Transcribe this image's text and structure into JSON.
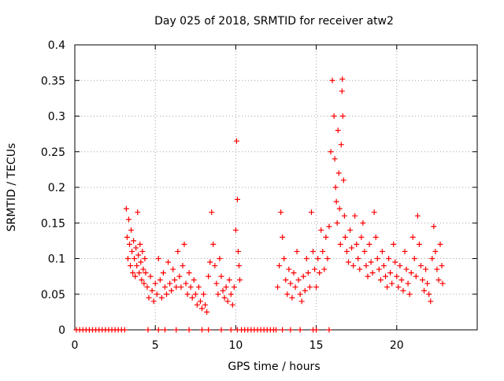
{
  "chart_data": {
    "type": "scatter",
    "title": "Day 025 of 2018, SRMTID for receiver atw2",
    "xlabel": "GPS time / hours",
    "ylabel": "SRMTID / TECUs",
    "xlim": [
      0,
      25
    ],
    "ylim": [
      0,
      0.4
    ],
    "xticks": [
      {
        "value": 0,
        "label": "0"
      },
      {
        "value": 5,
        "label": "5"
      },
      {
        "value": 10,
        "label": "10"
      },
      {
        "value": 15,
        "label": "15"
      },
      {
        "value": 20,
        "label": "20"
      }
    ],
    "yticks": [
      {
        "value": 0,
        "label": "0"
      },
      {
        "value": 0.05,
        "label": "0.05"
      },
      {
        "value": 0.1,
        "label": "0.1"
      },
      {
        "value": 0.15,
        "label": "0.15"
      },
      {
        "value": 0.2,
        "label": "0.2"
      },
      {
        "value": 0.25,
        "label": "0.25"
      },
      {
        "value": 0.3,
        "label": "0.3"
      },
      {
        "value": 0.35,
        "label": "0.35"
      },
      {
        "value": 0.4,
        "label": "0.4"
      }
    ],
    "grid": true,
    "marker": "+",
    "series_color": "#ff0000",
    "series": [
      {
        "name": "SRMTID",
        "points": [
          [
            0.1,
            0
          ],
          [
            0.3,
            0
          ],
          [
            0.5,
            0
          ],
          [
            0.7,
            0
          ],
          [
            0.9,
            0
          ],
          [
            1.1,
            0
          ],
          [
            1.3,
            0
          ],
          [
            1.5,
            0
          ],
          [
            1.7,
            0
          ],
          [
            1.9,
            0
          ],
          [
            2.1,
            0
          ],
          [
            2.3,
            0
          ],
          [
            2.5,
            0
          ],
          [
            2.7,
            0
          ],
          [
            2.9,
            0
          ],
          [
            3.1,
            0
          ],
          [
            3.2,
            0.17
          ],
          [
            3.25,
            0.13
          ],
          [
            3.3,
            0.1
          ],
          [
            3.35,
            0.155
          ],
          [
            3.4,
            0.12
          ],
          [
            3.45,
            0.09
          ],
          [
            3.5,
            0.14
          ],
          [
            3.55,
            0.11
          ],
          [
            3.6,
            0.08
          ],
          [
            3.65,
            0.125
          ],
          [
            3.7,
            0.1
          ],
          [
            3.75,
            0.075
          ],
          [
            3.8,
            0.115
          ],
          [
            3.85,
            0.09
          ],
          [
            3.9,
            0.165
          ],
          [
            3.95,
            0.105
          ],
          [
            4.0,
            0.08
          ],
          [
            4.05,
            0.12
          ],
          [
            4.1,
            0.095
          ],
          [
            4.15,
            0.07
          ],
          [
            4.2,
            0.11
          ],
          [
            4.25,
            0.085
          ],
          [
            4.3,
            0.065
          ],
          [
            4.35,
            0.1
          ],
          [
            4.4,
            0.08
          ],
          [
            4.5,
            0.06
          ],
          [
            4.6,
            0.045
          ],
          [
            4.7,
            0.075
          ],
          [
            4.8,
            0.055
          ],
          [
            4.9,
            0.04
          ],
          [
            5.0,
            0.065
          ],
          [
            5.1,
            0.05
          ],
          [
            5.2,
            0.1
          ],
          [
            5.3,
            0.07
          ],
          [
            5.4,
            0.045
          ],
          [
            5.5,
            0.08
          ],
          [
            5.6,
            0.06
          ],
          [
            5.7,
            0.05
          ],
          [
            5.8,
            0.095
          ],
          [
            5.9,
            0.065
          ],
          [
            6.0,
            0.055
          ],
          [
            6.1,
            0.085
          ],
          [
            6.2,
            0.07
          ],
          [
            6.3,
            0.06
          ],
          [
            6.4,
            0.11
          ],
          [
            6.5,
            0.075
          ],
          [
            6.6,
            0.06
          ],
          [
            6.7,
            0.09
          ],
          [
            6.8,
            0.12
          ],
          [
            6.9,
            0.065
          ],
          [
            7.0,
            0.05
          ],
          [
            7.1,
            0.08
          ],
          [
            7.2,
            0.06
          ],
          [
            7.3,
            0.045
          ],
          [
            7.4,
            0.07
          ],
          [
            7.5,
            0.05
          ],
          [
            7.6,
            0.035
          ],
          [
            7.7,
            0.06
          ],
          [
            7.8,
            0.04
          ],
          [
            7.9,
            0.03
          ],
          [
            8.0,
            0.05
          ],
          [
            8.1,
            0.035
          ],
          [
            8.2,
            0.025
          ],
          [
            8.3,
            0.075
          ],
          [
            8.4,
            0.095
          ],
          [
            8.5,
            0.165
          ],
          [
            8.6,
            0.12
          ],
          [
            8.7,
            0.09
          ],
          [
            8.8,
            0.065
          ],
          [
            8.9,
            0.05
          ],
          [
            9.0,
            0.1
          ],
          [
            9.1,
            0.075
          ],
          [
            9.2,
            0.055
          ],
          [
            9.3,
            0.045
          ],
          [
            9.4,
            0.06
          ],
          [
            9.5,
            0.04
          ],
          [
            9.6,
            0.07
          ],
          [
            9.7,
            0.05
          ],
          [
            9.8,
            0.035
          ],
          [
            9.9,
            0.06
          ],
          [
            10.0,
            0.14
          ],
          [
            10.05,
            0.265
          ],
          [
            10.1,
            0.183
          ],
          [
            10.15,
            0.11
          ],
          [
            10.2,
            0.09
          ],
          [
            10.25,
            0.07
          ],
          [
            10.35,
            0
          ],
          [
            10.55,
            0
          ],
          [
            10.75,
            0
          ],
          [
            10.95,
            0
          ],
          [
            11.15,
            0
          ],
          [
            11.35,
            0
          ],
          [
            11.55,
            0
          ],
          [
            11.75,
            0
          ],
          [
            11.95,
            0
          ],
          [
            12.15,
            0
          ],
          [
            12.35,
            0
          ],
          [
            12.5,
            0
          ],
          [
            12.6,
            0.06
          ],
          [
            12.7,
            0.09
          ],
          [
            12.8,
            0.165
          ],
          [
            12.9,
            0.13
          ],
          [
            13.0,
            0.1
          ],
          [
            13.1,
            0.07
          ],
          [
            13.2,
            0.05
          ],
          [
            13.3,
            0.085
          ],
          [
            13.4,
            0.065
          ],
          [
            13.5,
            0.045
          ],
          [
            13.6,
            0.08
          ],
          [
            13.7,
            0.06
          ],
          [
            13.8,
            0.11
          ],
          [
            13.9,
            0.07
          ],
          [
            14.0,
            0.05
          ],
          [
            14.1,
            0.04
          ],
          [
            14.2,
            0.075
          ],
          [
            14.3,
            0.055
          ],
          [
            14.4,
            0.1
          ],
          [
            14.5,
            0.08
          ],
          [
            14.6,
            0.06
          ],
          [
            14.7,
            0.165
          ],
          [
            14.8,
            0.11
          ],
          [
            14.9,
            0.085
          ],
          [
            15.0,
            0.06
          ],
          [
            15.1,
            0.1
          ],
          [
            15.2,
            0.08
          ],
          [
            15.3,
            0.14
          ],
          [
            15.4,
            0.11
          ],
          [
            15.5,
            0.085
          ],
          [
            15.6,
            0.13
          ],
          [
            15.7,
            0.1
          ],
          [
            15.8,
            0.145
          ],
          [
            15.9,
            0.25
          ],
          [
            16.0,
            0.35
          ],
          [
            16.1,
            0.3
          ],
          [
            16.15,
            0.24
          ],
          [
            16.2,
            0.2
          ],
          [
            16.25,
            0.18
          ],
          [
            16.3,
            0.15
          ],
          [
            16.35,
            0.28
          ],
          [
            16.4,
            0.22
          ],
          [
            16.45,
            0.17
          ],
          [
            16.5,
            0.12
          ],
          [
            16.55,
            0.26
          ],
          [
            16.6,
            0.335
          ],
          [
            16.62,
            0.352
          ],
          [
            16.65,
            0.3
          ],
          [
            16.7,
            0.21
          ],
          [
            16.75,
            0.16
          ],
          [
            16.8,
            0.13
          ],
          [
            16.9,
            0.11
          ],
          [
            17.0,
            0.095
          ],
          [
            17.1,
            0.14
          ],
          [
            17.2,
            0.115
          ],
          [
            17.3,
            0.09
          ],
          [
            17.4,
            0.16
          ],
          [
            17.5,
            0.12
          ],
          [
            17.6,
            0.1
          ],
          [
            17.7,
            0.085
          ],
          [
            17.8,
            0.13
          ],
          [
            17.9,
            0.15
          ],
          [
            18.0,
            0.11
          ],
          [
            18.1,
            0.09
          ],
          [
            18.2,
            0.075
          ],
          [
            18.3,
            0.12
          ],
          [
            18.4,
            0.095
          ],
          [
            18.5,
            0.08
          ],
          [
            18.6,
            0.165
          ],
          [
            18.7,
            0.13
          ],
          [
            18.8,
            0.1
          ],
          [
            18.9,
            0.085
          ],
          [
            19.0,
            0.07
          ],
          [
            19.1,
            0.11
          ],
          [
            19.2,
            0.09
          ],
          [
            19.3,
            0.075
          ],
          [
            19.4,
            0.06
          ],
          [
            19.5,
            0.1
          ],
          [
            19.6,
            0.08
          ],
          [
            19.7,
            0.065
          ],
          [
            19.8,
            0.12
          ],
          [
            19.9,
            0.095
          ],
          [
            20.0,
            0.075
          ],
          [
            20.1,
            0.06
          ],
          [
            20.2,
            0.09
          ],
          [
            20.3,
            0.07
          ],
          [
            20.4,
            0.055
          ],
          [
            20.5,
            0.11
          ],
          [
            20.6,
            0.085
          ],
          [
            20.7,
            0.065
          ],
          [
            20.8,
            0.05
          ],
          [
            20.9,
            0.08
          ],
          [
            21.0,
            0.13
          ],
          [
            21.1,
            0.1
          ],
          [
            21.2,
            0.075
          ],
          [
            21.3,
            0.16
          ],
          [
            21.4,
            0.12
          ],
          [
            21.5,
            0.09
          ],
          [
            21.6,
            0.07
          ],
          [
            21.7,
            0.055
          ],
          [
            21.8,
            0.085
          ],
          [
            21.9,
            0.065
          ],
          [
            22.0,
            0.05
          ],
          [
            22.1,
            0.04
          ],
          [
            22.2,
            0.1
          ],
          [
            22.3,
            0.145
          ],
          [
            22.4,
            0.11
          ],
          [
            22.5,
            0.085
          ],
          [
            22.6,
            0.07
          ],
          [
            22.7,
            0.12
          ],
          [
            22.8,
            0.09
          ],
          [
            22.85,
            0.065
          ],
          [
            4.55,
            0
          ],
          [
            5.2,
            0
          ],
          [
            5.6,
            0
          ],
          [
            6.3,
            0
          ],
          [
            7.1,
            0
          ],
          [
            7.9,
            0
          ],
          [
            8.3,
            0
          ],
          [
            9.1,
            0
          ],
          [
            9.7,
            0
          ],
          [
            10.1,
            0
          ],
          [
            12.9,
            0
          ],
          [
            13.4,
            0
          ],
          [
            14.0,
            0
          ],
          [
            14.8,
            0
          ],
          [
            15.0,
            0
          ],
          [
            15.8,
            0
          ]
        ]
      }
    ]
  }
}
